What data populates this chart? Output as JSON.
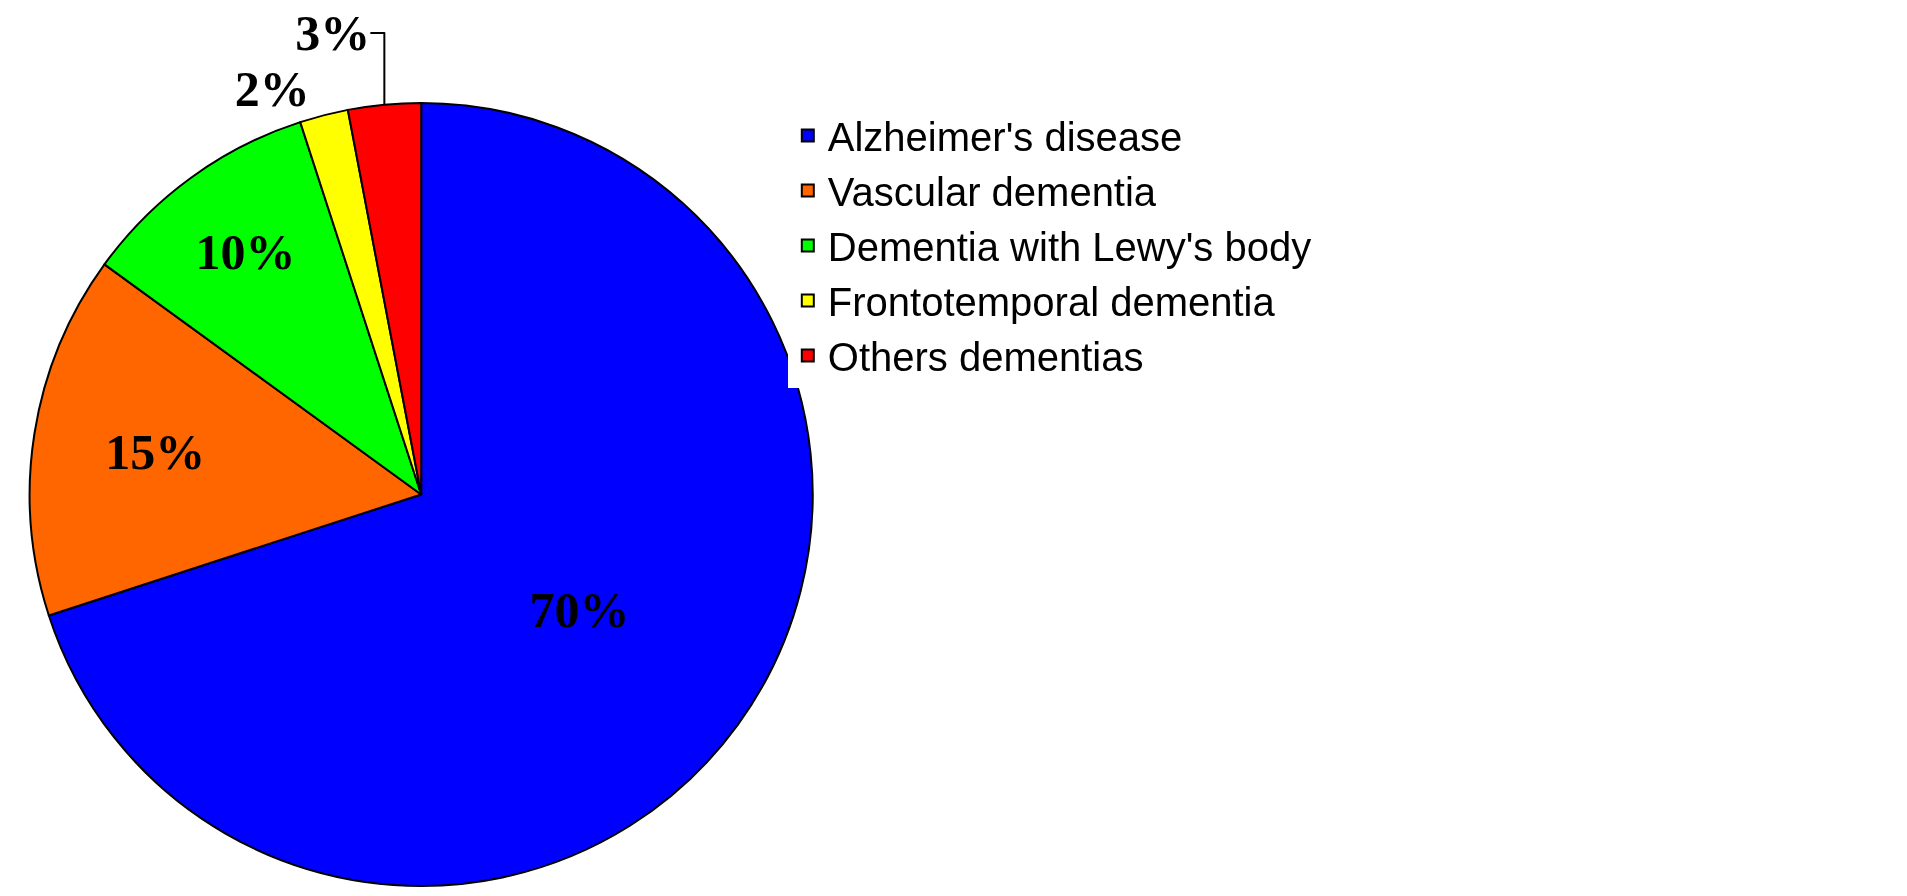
{
  "chart_data": {
    "type": "pie",
    "categories": [
      "Alzheimer's disease",
      "Vascular dementia",
      "Dementia with Lewy's body",
      "Frontotemporal dementia",
      "Others dementias"
    ],
    "values": [
      70,
      15,
      10,
      2,
      3
    ],
    "colors": [
      "#0000ff",
      "#ff6600",
      "#00ff00",
      "#ffff00",
      "#ff0000"
    ],
    "value_labels": [
      "70%",
      "15%",
      "10%",
      "2%",
      "3%"
    ],
    "legend": "top right"
  }
}
